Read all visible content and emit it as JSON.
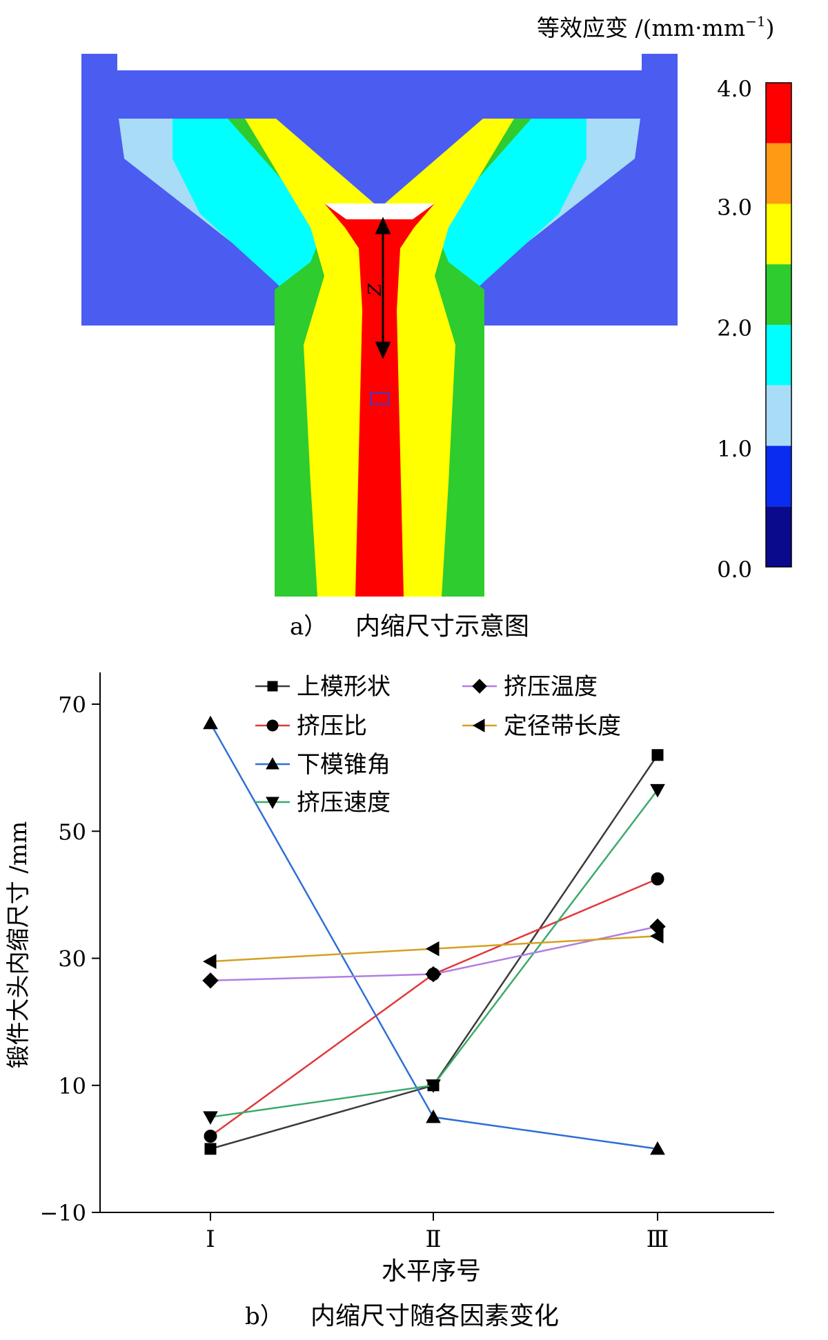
{
  "figure_a": {
    "caption_label": "a）",
    "caption_text": "内缩尺寸示意图",
    "colorbar_title": "等效应变 /(mm·mm",
    "colorbar_title_sup": "−1",
    "colorbar_title_close": ")",
    "dimension_label": "Z",
    "colorbar_ticks": [
      "4.0",
      "3.0",
      "2.0",
      "1.0",
      "0.0"
    ],
    "colorbar_colors": [
      "#ff0000",
      "#ff9a14",
      "#ffff00",
      "#2ecc2e",
      "#00ffff",
      "#a9dcf7",
      "#0a2cf0",
      "#0a0a8c"
    ],
    "colors": {
      "die": "#4b5cf0",
      "red": "#ff0000",
      "yellow": "#ffff00",
      "green": "#2ecc2e",
      "cyan": "#00ffff",
      "lightblue": "#a9dcf7",
      "blue": "#0a2cf0"
    }
  },
  "figure_b": {
    "caption_label": "b）",
    "caption_text": "内缩尺寸随各因素变化"
  },
  "chart_data": {
    "type": "line",
    "title": "",
    "xlabel": "水平序号",
    "ylabel": "锻件大头内缩尺寸 /mm",
    "categories": [
      "Ⅰ",
      "Ⅱ",
      "Ⅲ"
    ],
    "ylim": [
      -10,
      75
    ],
    "yticks": [
      -10,
      10,
      30,
      50,
      70
    ],
    "legend_position": "top",
    "series": [
      {
        "name": "上模形状",
        "marker": "square",
        "color": "#3a3a3a",
        "values": [
          0,
          10,
          62
        ]
      },
      {
        "name": "挤压比",
        "marker": "circle",
        "color": "#e03a3a",
        "values": [
          2,
          27.5,
          42.5
        ]
      },
      {
        "name": "下模锥角",
        "marker": "triangle-up",
        "color": "#2f6fd6",
        "values": [
          67,
          5,
          0
        ]
      },
      {
        "name": "挤压速度",
        "marker": "triangle-down",
        "color": "#3aaa6a",
        "values": [
          5,
          10,
          56.5
        ]
      },
      {
        "name": "挤压温度",
        "marker": "diamond",
        "color": "#b07ee0",
        "values": [
          26.5,
          27.5,
          35
        ]
      },
      {
        "name": "定径带长度",
        "marker": "triangle-left",
        "color": "#d4a020",
        "values": [
          29.5,
          31.5,
          33.5
        ]
      }
    ]
  }
}
